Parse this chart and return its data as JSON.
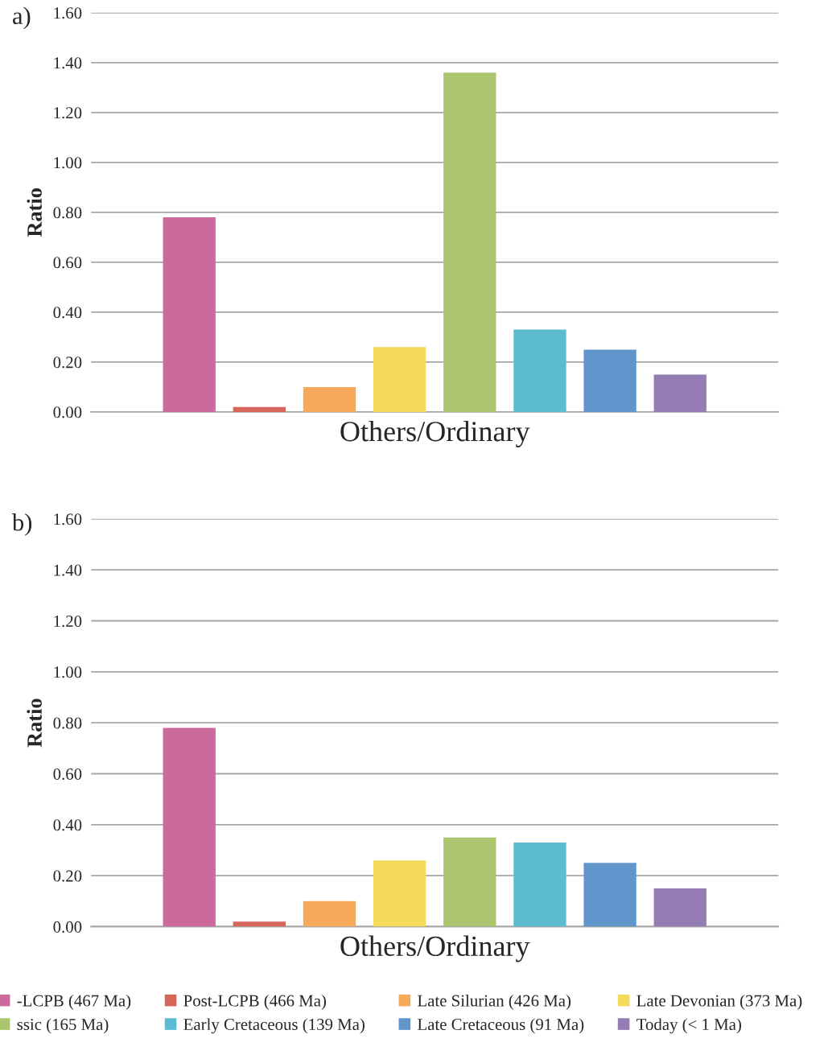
{
  "chart_data": [
    {
      "type": "bar",
      "title": "a)",
      "ylabel": "Ratio",
      "categories": [
        "Others/Ordinary"
      ],
      "ylim": [
        0,
        1.6
      ],
      "yticks": [
        {
          "value": 0,
          "label": "0.00"
        },
        {
          "value": 0.2,
          "label": "0.20"
        },
        {
          "value": 0.4,
          "label": "0.40"
        },
        {
          "value": 0.6,
          "label": "0.60"
        },
        {
          "value": 0.8,
          "label": "0.80"
        },
        {
          "value": 1.0,
          "label": "1.00"
        },
        {
          "value": 1.2,
          "label": "1.20"
        },
        {
          "value": 1.4,
          "label": "1.40"
        },
        {
          "value": 1.6,
          "label": "1.60"
        }
      ],
      "grid": "y",
      "legend": false,
      "series": [
        {
          "color": "#cc6a9e",
          "values": [
            0.78
          ]
        },
        {
          "color": "#d4665a",
          "values": [
            0.02
          ]
        },
        {
          "color": "#f7a95b",
          "values": [
            0.1
          ]
        },
        {
          "color": "#f6da5a",
          "values": [
            0.26
          ]
        },
        {
          "color": "#abc56e",
          "values": [
            1.36
          ]
        },
        {
          "color": "#5bbbd1",
          "values": [
            0.33
          ]
        },
        {
          "color": "#6196cc",
          "values": [
            0.25
          ]
        },
        {
          "color": "#957cb4",
          "values": [
            0.15
          ]
        }
      ]
    },
    {
      "type": "bar",
      "title": "b)",
      "ylabel": "Ratio",
      "categories": [
        "Others/Ordinary"
      ],
      "ylim": [
        0,
        1.6
      ],
      "yticks": [
        {
          "value": 0,
          "label": "0.00"
        },
        {
          "value": 0.2,
          "label": "0.20"
        },
        {
          "value": 0.4,
          "label": "0.40"
        },
        {
          "value": 0.6,
          "label": "0.60"
        },
        {
          "value": 0.8,
          "label": "0.80"
        },
        {
          "value": 1.0,
          "label": "1.00"
        },
        {
          "value": 1.2,
          "label": "1.20"
        },
        {
          "value": 1.4,
          "label": "1.40"
        },
        {
          "value": 1.6,
          "label": "1.60"
        }
      ],
      "grid": "y",
      "legend": "bottom",
      "series": [
        {
          "name": "-LCPB (467 Ma)",
          "color": "#cc6a9e",
          "values": [
            0.78
          ]
        },
        {
          "name": "Post-LCPB (466 Ma)",
          "color": "#d4665a",
          "values": [
            0.02
          ]
        },
        {
          "name": "Late Silurian (426 Ma)",
          "color": "#f7a95b",
          "values": [
            0.1
          ]
        },
        {
          "name": "Late Devonian (373 Ma)",
          "color": "#f6da5a",
          "values": [
            0.26
          ]
        },
        {
          "name": "ssic (165 Ma)",
          "color": "#abc56e",
          "values": [
            0.35
          ]
        },
        {
          "name": "Early Cretaceous (139 Ma)",
          "color": "#5bbbd1",
          "values": [
            0.33
          ]
        },
        {
          "name": "Late Cretaceous (91 Ma)",
          "color": "#6196cc",
          "values": [
            0.25
          ]
        },
        {
          "name": "Today (< 1 Ma)",
          "color": "#957cb4",
          "values": [
            0.15
          ]
        }
      ]
    }
  ]
}
